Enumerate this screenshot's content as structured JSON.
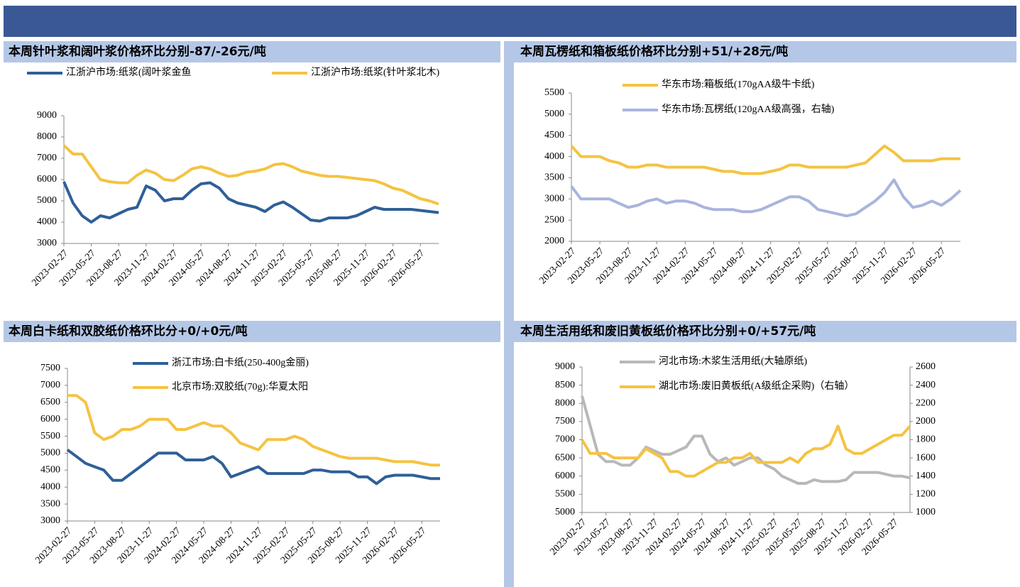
{
  "chart_data": [
    {
      "type": "line",
      "title": "本周针叶浆和阔叶浆价格环比分别-87/-26元/吨",
      "categories": [
        "2023-02-27",
        null,
        null,
        "2023-05-27",
        null,
        null,
        "2023-08-27",
        null,
        null,
        "2023-11-27",
        null,
        null,
        "2024-02-27",
        null,
        null,
        "2024-05-27",
        null,
        null,
        "2024-08-27",
        null,
        null,
        "2024-11-27",
        null,
        null,
        "2025-02-27",
        null,
        null,
        "2025-05-27",
        null,
        null,
        "2025-08-27",
        null,
        null,
        "2025-11-27",
        null,
        null,
        "2026-02-27",
        null,
        null,
        "2026-05-27",
        null,
        null
      ],
      "ylim": [
        3000,
        9000
      ],
      "yticks": [
        3000,
        4000,
        5000,
        6000,
        7000,
        8000,
        9000
      ],
      "series": [
        {
          "name": "江浙沪市场:纸浆(阔叶浆金鱼",
          "color": "#2f5f98",
          "values": [
            5900,
            4900,
            4300,
            4000,
            4300,
            4200,
            4400,
            4600,
            4700,
            5700,
            5500,
            5000,
            5100,
            5100,
            5500,
            5800,
            5850,
            5600,
            5100,
            4900,
            4800,
            4700,
            4500,
            4800,
            4950,
            4700,
            4400,
            4100,
            4050,
            4200,
            4200,
            4200,
            4300,
            4500,
            4700,
            4600,
            4600,
            4600,
            4600,
            4550,
            4500,
            4450
          ]
        },
        {
          "name": "江浙沪市场:纸浆(针叶浆北木)",
          "color": "#f5c342",
          "values": [
            7600,
            7200,
            7200,
            6600,
            6000,
            5900,
            5850,
            5850,
            6200,
            6450,
            6300,
            6000,
            5950,
            6200,
            6500,
            6600,
            6500,
            6300,
            6150,
            6200,
            6350,
            6400,
            6500,
            6700,
            6750,
            6600,
            6400,
            6300,
            6200,
            6150,
            6150,
            6100,
            6050,
            6000,
            5950,
            5800,
            5600,
            5500,
            5300,
            5100,
            5000,
            4850
          ]
        }
      ]
    },
    {
      "type": "line",
      "title": "本周瓦楞纸和箱板纸价格环比分别+51/+28元/吨",
      "categories": [
        "2023-02-27",
        null,
        null,
        "2023-05-27",
        null,
        null,
        "2023-08-27",
        null,
        null,
        "2023-11-27",
        null,
        null,
        "2024-02-27",
        null,
        null,
        "2024-05-27",
        null,
        null,
        "2024-08-27",
        null,
        null,
        "2024-11-27",
        null,
        null,
        "2025-02-27",
        null,
        null,
        "2025-05-27",
        null,
        null,
        "2025-08-27",
        null,
        null,
        "2025-11-27",
        null,
        null,
        "2026-02-27",
        null,
        null,
        "2026-05-27",
        null,
        null
      ],
      "ylim": [
        2000,
        5500
      ],
      "yticks": [
        2000,
        2500,
        3000,
        3500,
        4000,
        4500,
        5000,
        5500
      ],
      "series": [
        {
          "name": "华东市场:箱板纸(170gAA级牛卡纸)",
          "color": "#f5c342",
          "values": [
            4250,
            4000,
            4000,
            4000,
            3900,
            3850,
            3750,
            3750,
            3800,
            3800,
            3750,
            3750,
            3750,
            3750,
            3750,
            3700,
            3650,
            3650,
            3600,
            3600,
            3600,
            3650,
            3700,
            3800,
            3800,
            3750,
            3750,
            3750,
            3750,
            3750,
            3800,
            3850,
            4050,
            4250,
            4100,
            3900,
            3900,
            3900,
            3900,
            3950,
            3950,
            3950
          ]
        },
        {
          "name": "华东市场:瓦楞纸(120gAA级高强，右轴)",
          "color": "#a9b4dd",
          "values": [
            3300,
            3000,
            3000,
            3000,
            3000,
            2900,
            2800,
            2850,
            2950,
            3000,
            2900,
            2950,
            2950,
            2900,
            2800,
            2750,
            2750,
            2750,
            2700,
            2700,
            2750,
            2850,
            2950,
            3050,
            3050,
            2950,
            2750,
            2700,
            2650,
            2600,
            2650,
            2800,
            2950,
            3150,
            3450,
            3050,
            2800,
            2850,
            2950,
            2850,
            3000,
            3200
          ]
        }
      ]
    },
    {
      "type": "line",
      "title": "本周白卡纸和双胶纸价格环比分+0/+0元/吨",
      "categories": [
        "2023-02-27",
        null,
        null,
        "2023-05-27",
        null,
        null,
        "2023-08-27",
        null,
        null,
        "2023-11-27",
        null,
        null,
        "2024-02-27",
        null,
        null,
        "2024-05-27",
        null,
        null,
        "2024-08-27",
        null,
        null,
        "2024-11-27",
        null,
        null,
        "2025-02-27",
        null,
        null,
        "2025-05-27",
        null,
        null,
        "2025-08-27",
        null,
        null,
        "2025-11-27",
        null,
        null,
        "2026-02-27",
        null,
        null,
        "2026-05-27",
        null,
        null
      ],
      "ylim": [
        3000,
        7500
      ],
      "yticks": [
        3000,
        3500,
        4000,
        4500,
        5000,
        5500,
        6000,
        6500,
        7000,
        7500
      ],
      "series": [
        {
          "name": "浙江市场:白卡纸(250-400g金丽)",
          "color": "#2f5f98",
          "values": [
            5100,
            4900,
            4700,
            4600,
            4500,
            4200,
            4200,
            4400,
            4600,
            4800,
            5000,
            5000,
            5000,
            4800,
            4800,
            4800,
            4900,
            4700,
            4300,
            4400,
            4500,
            4600,
            4400,
            4400,
            4400,
            4400,
            4400,
            4500,
            4500,
            4450,
            4450,
            4450,
            4300,
            4300,
            4100,
            4300,
            4350,
            4350,
            4350,
            4300,
            4250,
            4250
          ]
        },
        {
          "name": "北京市场:双胶纸(70g):华夏太阳",
          "color": "#f5c342",
          "values": [
            6700,
            6700,
            6500,
            5600,
            5400,
            5500,
            5700,
            5700,
            5800,
            6000,
            6000,
            6000,
            5700,
            5700,
            5800,
            5900,
            5800,
            5800,
            5600,
            5300,
            5200,
            5100,
            5400,
            5400,
            5400,
            5500,
            5400,
            5200,
            5100,
            5000,
            4900,
            4850,
            4850,
            4850,
            4850,
            4800,
            4750,
            4750,
            4750,
            4700,
            4650,
            4650
          ]
        }
      ]
    },
    {
      "type": "line",
      "title": "本周生活用纸和废旧黄板纸价格环比分别+0/+57元/吨",
      "categories": [
        "2023-02-27",
        null,
        null,
        "2023-05-27",
        null,
        null,
        "2023-08-27",
        null,
        null,
        "2023-11-27",
        null,
        null,
        "2024-02-27",
        null,
        null,
        "2024-05-27",
        null,
        null,
        "2024-08-27",
        null,
        null,
        "2024-11-27",
        null,
        null,
        "2025-02-27",
        null,
        null,
        "2025-05-27",
        null,
        null,
        "2025-08-27",
        null,
        null,
        "2025-11-27",
        null,
        null,
        "2026-02-27",
        null,
        null,
        "2026-05-27",
        null,
        null
      ],
      "ylim": [
        5000,
        9000
      ],
      "yticks": [
        5000,
        5500,
        6000,
        6500,
        7000,
        7500,
        8000,
        8500,
        9000
      ],
      "y2lim": [
        1000,
        2600
      ],
      "y2ticks": [
        1000,
        1200,
        1400,
        1600,
        1800,
        2000,
        2200,
        2400,
        2600
      ],
      "series": [
        {
          "name": "河北市场:木浆生活用纸(大轴原纸)",
          "color": "#b8b8b8",
          "values": [
            8200,
            7400,
            6600,
            6400,
            6400,
            6300,
            6300,
            6500,
            6800,
            6700,
            6600,
            6600,
            6700,
            6800,
            7100,
            7100,
            6600,
            6400,
            6500,
            6300,
            6400,
            6500,
            6500,
            6300,
            6200,
            6000,
            5900,
            5800,
            5800,
            5900,
            5850,
            5850,
            5850,
            5900,
            6100,
            6100,
            6100,
            6100,
            6050,
            6000,
            6000,
            5950
          ]
        },
        {
          "name": "湖北市场:废旧黄板纸(A级纸企采购)（右轴）",
          "color": "#f5c342",
          "axis": "y2",
          "values": [
            1800,
            1650,
            1650,
            1650,
            1600,
            1600,
            1600,
            1600,
            1700,
            1650,
            1600,
            1450,
            1450,
            1400,
            1400,
            1450,
            1500,
            1550,
            1550,
            1600,
            1600,
            1650,
            1550,
            1550,
            1550,
            1550,
            1600,
            1550,
            1650,
            1700,
            1700,
            1750,
            1950,
            1700,
            1650,
            1650,
            1700,
            1750,
            1800,
            1850,
            1850,
            1950
          ]
        }
      ]
    }
  ]
}
